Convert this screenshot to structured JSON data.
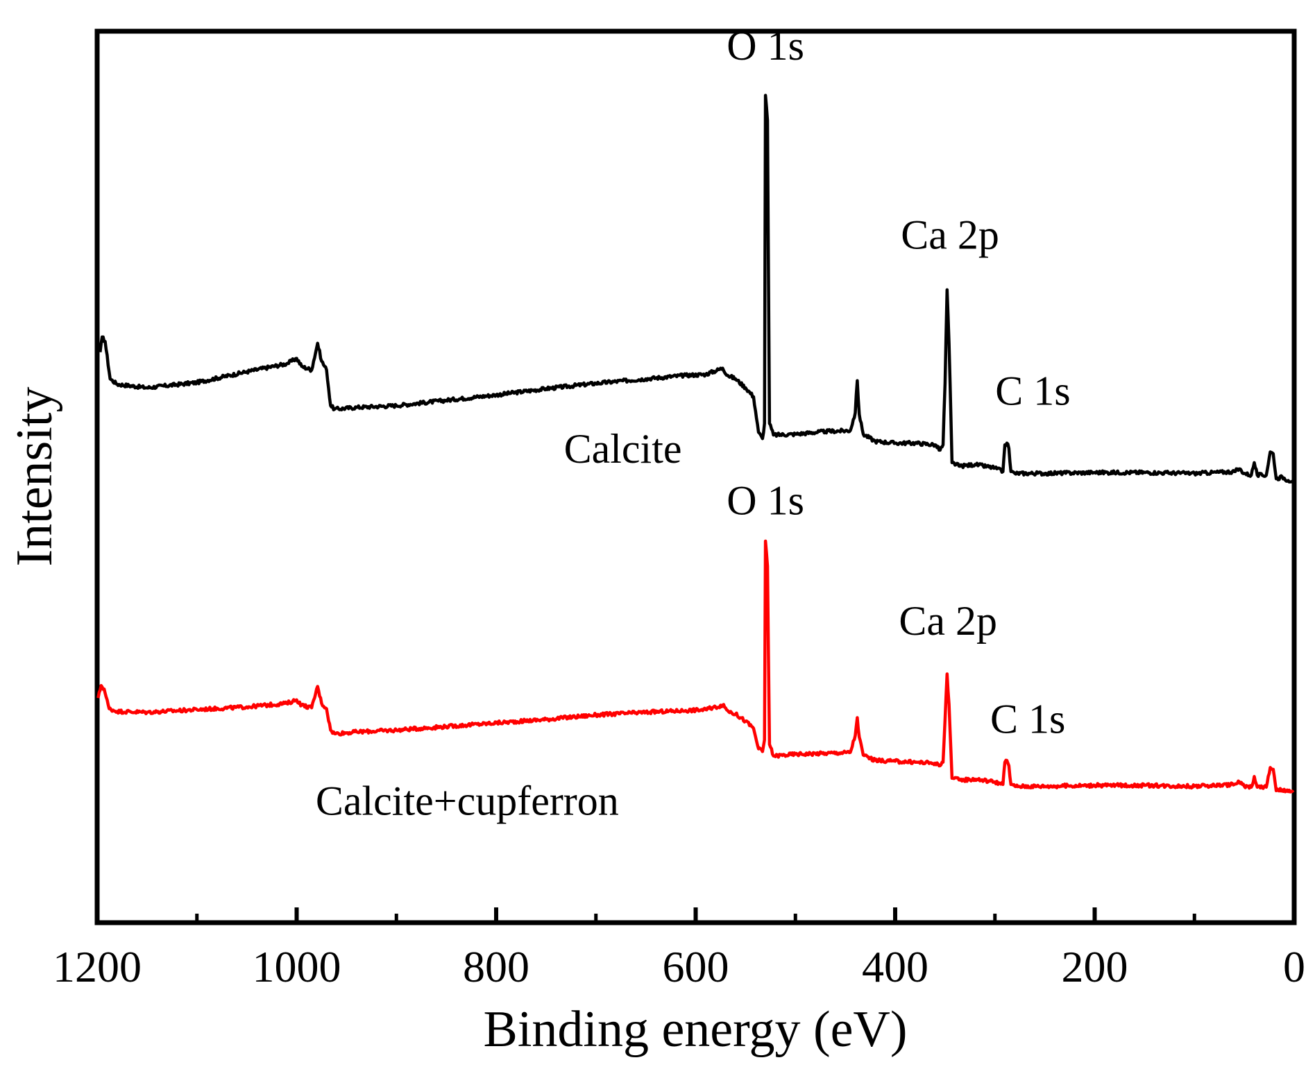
{
  "chart_data": {
    "type": "line",
    "title": "",
    "xlabel": "Binding energy (eV)",
    "ylabel": "Intensity",
    "xlim": [
      1200,
      0
    ],
    "ylim": [
      0,
      100
    ],
    "x_reversed": true,
    "xticks_major": [
      1200,
      1000,
      800,
      600,
      400,
      200,
      0
    ],
    "xtick_labels": [
      "1200",
      "1000",
      "800",
      "600",
      "400",
      "200",
      "0"
    ],
    "xticks_minor": [
      1100,
      900,
      700,
      500,
      300,
      100
    ],
    "grid": false,
    "legend": "none",
    "colors": {
      "axis": "#000000",
      "calcite": "#000000",
      "calcite_cupferron": "#ff0000"
    },
    "series": [
      {
        "name": "Calcite",
        "label": "Calcite",
        "color": "#000000",
        "baseline_jitter": 0.4,
        "points": [
          [
            1197,
            64.0
          ],
          [
            1195,
            65.7
          ],
          [
            1192,
            65.2
          ],
          [
            1187,
            61.0
          ],
          [
            1180,
            60.4
          ],
          [
            1150,
            60.0
          ],
          [
            1100,
            60.6
          ],
          [
            1050,
            61.8
          ],
          [
            1010,
            62.7
          ],
          [
            1000,
            63.3
          ],
          [
            995,
            62.4
          ],
          [
            985,
            62.0
          ],
          [
            979,
            65.0
          ],
          [
            975,
            63.0
          ],
          [
            970,
            62.0
          ],
          [
            966,
            58.0
          ],
          [
            962,
            57.6
          ],
          [
            940,
            57.8
          ],
          [
            900,
            58.0
          ],
          [
            850,
            58.6
          ],
          [
            800,
            59.2
          ],
          [
            750,
            59.9
          ],
          [
            700,
            60.5
          ],
          [
            650,
            61.0
          ],
          [
            610,
            61.4
          ],
          [
            590,
            61.5
          ],
          [
            573,
            62.2
          ],
          [
            568,
            61.4
          ],
          [
            560,
            61.0
          ],
          [
            550,
            60.0
          ],
          [
            542,
            59.0
          ],
          [
            537,
            55.0
          ],
          [
            533,
            54.3
          ],
          [
            531,
            56.0
          ],
          [
            530,
            92.8
          ],
          [
            528,
            90.0
          ],
          [
            526,
            56.0
          ],
          [
            522,
            54.7
          ],
          [
            500,
            54.8
          ],
          [
            470,
            55.1
          ],
          [
            445,
            55.2
          ],
          [
            440,
            57.2
          ],
          [
            438,
            60.8
          ],
          [
            436,
            57.0
          ],
          [
            432,
            54.8
          ],
          [
            420,
            54.0
          ],
          [
            400,
            53.8
          ],
          [
            380,
            53.8
          ],
          [
            360,
            53.6
          ],
          [
            355,
            53.0
          ],
          [
            352,
            53.6
          ],
          [
            350,
            60.5
          ],
          [
            348,
            71.0
          ],
          [
            346,
            65.0
          ],
          [
            343,
            51.6
          ],
          [
            335,
            51.2
          ],
          [
            320,
            51.4
          ],
          [
            300,
            51.0
          ],
          [
            292,
            50.6
          ],
          [
            290,
            53.6
          ],
          [
            288,
            53.8
          ],
          [
            286,
            53.2
          ],
          [
            284,
            50.6
          ],
          [
            280,
            50.4
          ],
          [
            250,
            50.4
          ],
          [
            200,
            50.5
          ],
          [
            150,
            50.5
          ],
          [
            100,
            50.4
          ],
          [
            60,
            50.6
          ],
          [
            55,
            50.9
          ],
          [
            50,
            50.4
          ],
          [
            43,
            50.2
          ],
          [
            40,
            51.6
          ],
          [
            37,
            50.2
          ],
          [
            28,
            50.2
          ],
          [
            24,
            52.8
          ],
          [
            21,
            52.6
          ],
          [
            18,
            49.8
          ],
          [
            12,
            50.0
          ],
          [
            6,
            49.6
          ],
          [
            1,
            49.6
          ]
        ]
      },
      {
        "name": "Calcite+cupferron",
        "label": "Calcite+cupferron",
        "color": "#ff0000",
        "baseline_jitter": 0.4,
        "points": [
          [
            1199,
            25.2
          ],
          [
            1196,
            26.6
          ],
          [
            1193,
            26.2
          ],
          [
            1188,
            24.0
          ],
          [
            1180,
            23.7
          ],
          [
            1150,
            23.6
          ],
          [
            1100,
            23.9
          ],
          [
            1050,
            24.2
          ],
          [
            1010,
            24.6
          ],
          [
            1000,
            25.0
          ],
          [
            995,
            24.4
          ],
          [
            985,
            24.1
          ],
          [
            979,
            26.5
          ],
          [
            975,
            24.6
          ],
          [
            970,
            24.0
          ],
          [
            966,
            21.6
          ],
          [
            962,
            21.2
          ],
          [
            940,
            21.4
          ],
          [
            900,
            21.6
          ],
          [
            850,
            22.0
          ],
          [
            800,
            22.4
          ],
          [
            750,
            22.8
          ],
          [
            700,
            23.3
          ],
          [
            650,
            23.6
          ],
          [
            610,
            23.8
          ],
          [
            590,
            23.9
          ],
          [
            573,
            24.4
          ],
          [
            568,
            23.8
          ],
          [
            560,
            23.4
          ],
          [
            550,
            22.6
          ],
          [
            542,
            21.8
          ],
          [
            537,
            19.5
          ],
          [
            533,
            19.2
          ],
          [
            531,
            20.5
          ],
          [
            530,
            42.8
          ],
          [
            528,
            40.0
          ],
          [
            526,
            20.0
          ],
          [
            522,
            18.7
          ],
          [
            500,
            18.9
          ],
          [
            470,
            19.0
          ],
          [
            445,
            19.1
          ],
          [
            440,
            21.0
          ],
          [
            438,
            23.0
          ],
          [
            436,
            20.8
          ],
          [
            432,
            18.8
          ],
          [
            420,
            18.2
          ],
          [
            400,
            18.1
          ],
          [
            380,
            18.0
          ],
          [
            360,
            17.9
          ],
          [
            355,
            17.6
          ],
          [
            352,
            18.0
          ],
          [
            350,
            22.8
          ],
          [
            348,
            27.9
          ],
          [
            346,
            24.5
          ],
          [
            343,
            16.2
          ],
          [
            335,
            16.0
          ],
          [
            320,
            16.1
          ],
          [
            300,
            15.8
          ],
          [
            292,
            15.5
          ],
          [
            290,
            18.0
          ],
          [
            288,
            18.2
          ],
          [
            286,
            17.6
          ],
          [
            284,
            15.5
          ],
          [
            280,
            15.3
          ],
          [
            250,
            15.3
          ],
          [
            200,
            15.4
          ],
          [
            150,
            15.4
          ],
          [
            100,
            15.3
          ],
          [
            60,
            15.5
          ],
          [
            55,
            15.8
          ],
          [
            50,
            15.3
          ],
          [
            43,
            15.2
          ],
          [
            40,
            16.4
          ],
          [
            37,
            15.2
          ],
          [
            28,
            15.2
          ],
          [
            24,
            17.4
          ],
          [
            21,
            17.2
          ],
          [
            18,
            14.8
          ],
          [
            12,
            14.9
          ],
          [
            6,
            14.7
          ],
          [
            1,
            14.6
          ]
        ]
      }
    ],
    "annotations": [
      {
        "id": "calcite-o1s",
        "text": "O 1s",
        "x": 530,
        "y": 96.8
      },
      {
        "id": "calcite-ca2p",
        "text": "Ca 2p",
        "x": 345,
        "y": 75.6
      },
      {
        "id": "calcite-c1s",
        "text": "C 1s",
        "x": 262,
        "y": 58.1
      },
      {
        "id": "calcite-label",
        "text": "Calcite",
        "x": 673,
        "y": 51.6
      },
      {
        "id": "cupferron-o1s",
        "text": "O 1s",
        "x": 530,
        "y": 45.8
      },
      {
        "id": "cupferron-ca2p",
        "text": "Ca 2p",
        "x": 347,
        "y": 32.3
      },
      {
        "id": "cupferron-c1s",
        "text": "C 1s",
        "x": 267,
        "y": 21.3
      },
      {
        "id": "cupferron-label",
        "text": "Calcite+cupferron",
        "x": 829,
        "y": 12.1
      }
    ]
  }
}
